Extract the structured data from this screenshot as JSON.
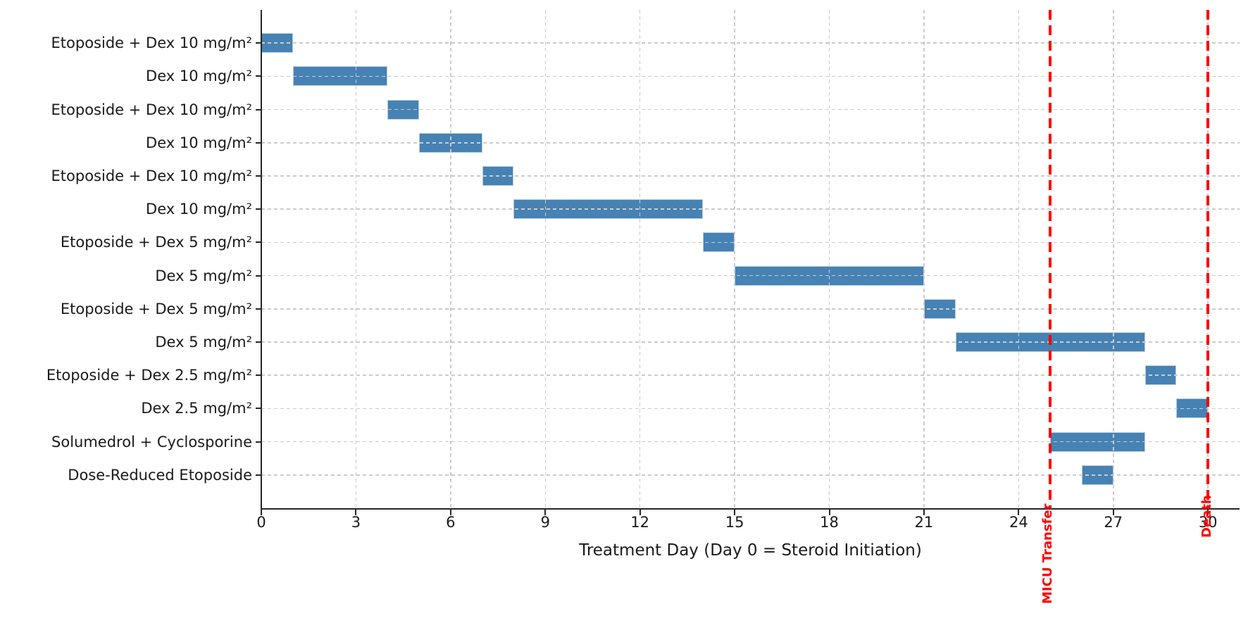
{
  "chart_data": {
    "type": "bar",
    "subtype": "horizontal-gantt-timeline",
    "title": "",
    "xlabel": "Treatment Day (Day 0 = Steroid Initiation)",
    "ylabel": "",
    "xlim": [
      0,
      31
    ],
    "x_ticks": [
      0,
      3,
      6,
      9,
      12,
      15,
      18,
      21,
      24,
      27,
      30
    ],
    "grid": true,
    "legend": "none",
    "colors": {
      "bar_fill": "#4682b4",
      "bar_edge": "#b7cde0",
      "grid": "#cccccc",
      "event_line": "#ff0000",
      "text": "#1a1a1a"
    },
    "rows": [
      {
        "label": "Etoposide + Dex 10 mg/m²",
        "start_day": 0,
        "end_day": 1
      },
      {
        "label": "Dex 10 mg/m²",
        "start_day": 1,
        "end_day": 4
      },
      {
        "label": "Etoposide + Dex 10 mg/m²",
        "start_day": 4,
        "end_day": 5
      },
      {
        "label": "Dex 10 mg/m²",
        "start_day": 5,
        "end_day": 7
      },
      {
        "label": "Etoposide + Dex 10 mg/m²",
        "start_day": 7,
        "end_day": 8
      },
      {
        "label": "Dex 10 mg/m²",
        "start_day": 8,
        "end_day": 14
      },
      {
        "label": "Etoposide + Dex 5 mg/m²",
        "start_day": 14,
        "end_day": 15
      },
      {
        "label": "Dex 5 mg/m²",
        "start_day": 15,
        "end_day": 21
      },
      {
        "label": "Etoposide + Dex 5 mg/m²",
        "start_day": 21,
        "end_day": 22
      },
      {
        "label": "Dex 5 mg/m²",
        "start_day": 22,
        "end_day": 28
      },
      {
        "label": "Etoposide + Dex 2.5 mg/m²",
        "start_day": 28,
        "end_day": 29
      },
      {
        "label": "Dex 2.5 mg/m²",
        "start_day": 29,
        "end_day": 30
      },
      {
        "label": "Solumedrol + Cyclosporine",
        "start_day": 25,
        "end_day": 28
      },
      {
        "label": "Dose-Reduced Etoposide",
        "start_day": 26,
        "end_day": 27
      }
    ],
    "event_lines": [
      {
        "label": "MICU Transfer",
        "day": 25
      },
      {
        "label": "Death",
        "day": 30
      }
    ]
  }
}
